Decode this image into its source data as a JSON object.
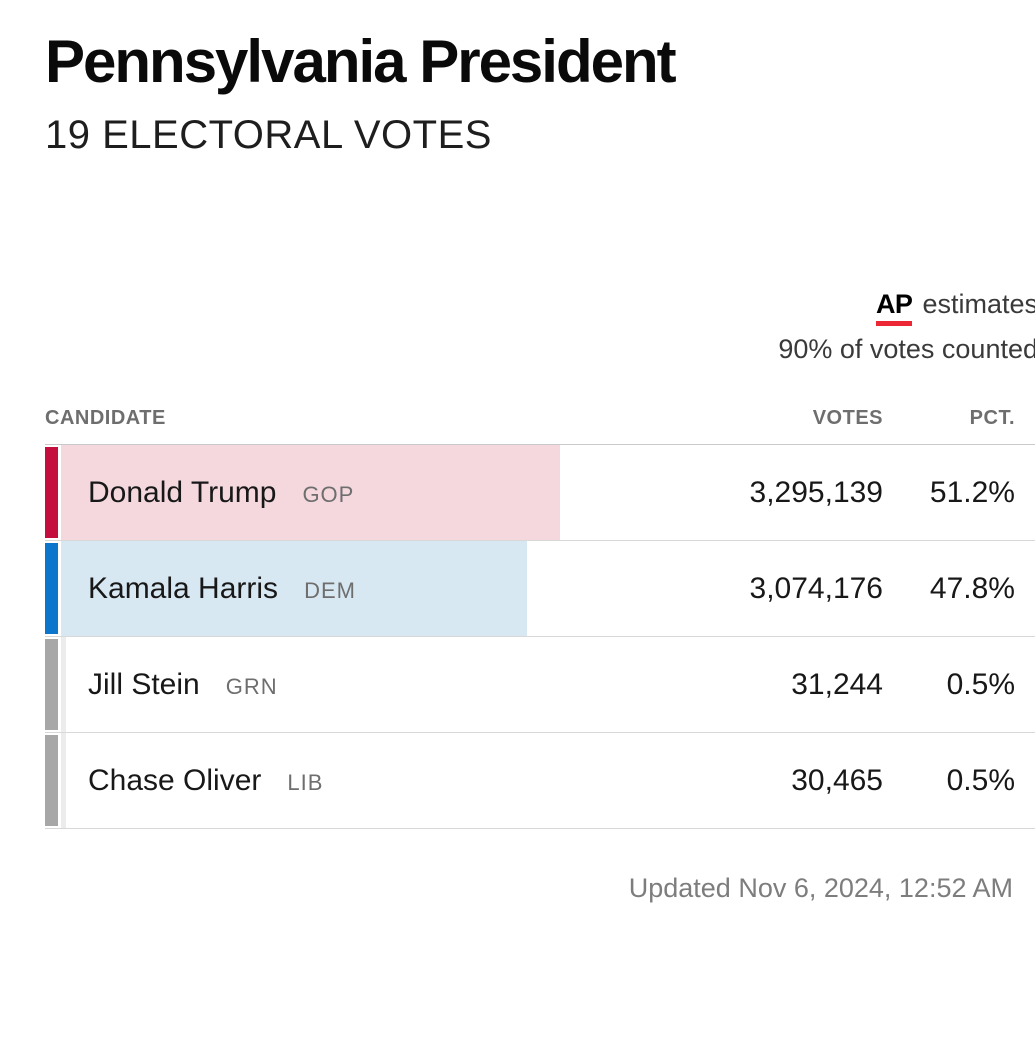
{
  "header": {
    "title": "Pennsylvania President",
    "subtitle": "19 ELECTORAL VOTES"
  },
  "status": {
    "ap_label": "AP",
    "estimate_label": "estimates",
    "counted_label": "90% of votes counted",
    "ap_red": "#ee2737"
  },
  "table": {
    "columns": {
      "candidate": "CANDIDATE",
      "votes": "VOTES",
      "pct": "PCT."
    },
    "rows": [
      {
        "name": "Donald Trump",
        "party": "GOP",
        "votes": "3,295,139",
        "pct": "51.2%",
        "pct_value": 51.2,
        "color": "#c40e3e",
        "fill": "#f4d8de"
      },
      {
        "name": "Kamala Harris",
        "party": "DEM",
        "votes": "3,074,176",
        "pct": "47.8%",
        "pct_value": 47.8,
        "color": "#0c76cc",
        "fill": "#d8e8f3"
      },
      {
        "name": "Jill Stein",
        "party": "GRN",
        "votes": "31,244",
        "pct": "0.5%",
        "pct_value": 0.5,
        "color": "#a7a7a7",
        "fill": "#ececec"
      },
      {
        "name": "Chase Oliver",
        "party": "LIB",
        "votes": "30,465",
        "pct": "0.5%",
        "pct_value": 0.5,
        "color": "#a7a7a7",
        "fill": "#ececec"
      }
    ]
  },
  "footer": {
    "updated": "Updated Nov 6, 2024, 12:52 AM"
  },
  "chart_data": {
    "type": "bar",
    "title": "Pennsylvania President",
    "subtitle": "19 ELECTORAL VOTES",
    "categories": [
      "Donald Trump (GOP)",
      "Kamala Harris (DEM)",
      "Jill Stein (GRN)",
      "Chase Oliver (LIB)"
    ],
    "series": [
      {
        "name": "Votes",
        "values": [
          3295139,
          3074176,
          31244,
          30465
        ]
      },
      {
        "name": "Percent",
        "values": [
          51.2,
          47.8,
          0.5,
          0.5
        ]
      }
    ],
    "annotations": [
      "AP estimates",
      "90% of votes counted",
      "Updated Nov 6, 2024, 12:52 AM"
    ],
    "xlabel": "",
    "ylabel": "",
    "legend_position": "none",
    "grid": false
  }
}
